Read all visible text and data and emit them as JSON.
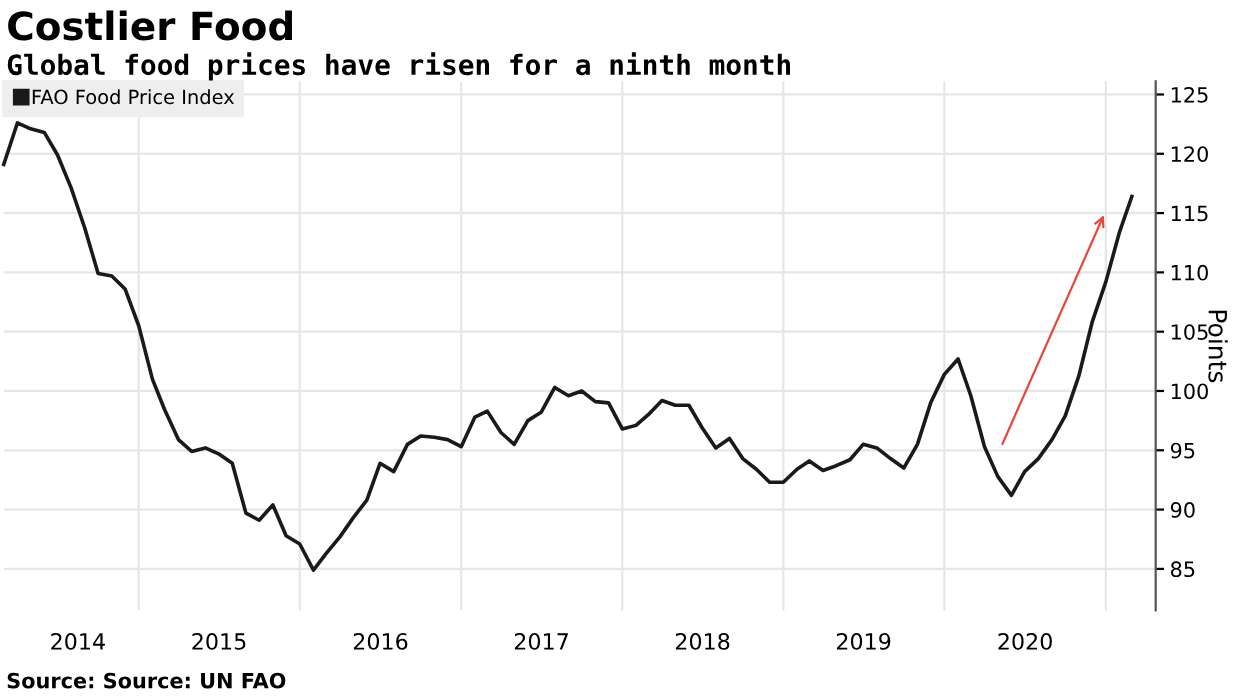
{
  "chart_data": {
    "type": "line",
    "title": "Costlier Food",
    "subtitle": "Global food prices have risen for a ninth month",
    "ylabel": "Points",
    "annotations": [
      "Source: Source: UN FAO"
    ],
    "x": [
      "2014-03",
      "2014-04",
      "2014-05",
      "2014-06",
      "2014-07",
      "2014-08",
      "2014-09",
      "2014-10",
      "2014-11",
      "2014-12",
      "2015-01",
      "2015-02",
      "2015-03",
      "2015-04",
      "2015-05",
      "2015-06",
      "2015-07",
      "2015-08",
      "2015-09",
      "2015-10",
      "2015-11",
      "2015-12",
      "2016-01",
      "2016-02",
      "2016-03",
      "2016-04",
      "2016-05",
      "2016-06",
      "2016-07",
      "2016-08",
      "2016-09",
      "2016-10",
      "2016-11",
      "2016-12",
      "2017-01",
      "2017-02",
      "2017-03",
      "2017-04",
      "2017-05",
      "2017-06",
      "2017-07",
      "2017-08",
      "2017-09",
      "2017-10",
      "2017-11",
      "2017-12",
      "2018-01",
      "2018-02",
      "2018-03",
      "2018-04",
      "2018-05",
      "2018-06",
      "2018-07",
      "2018-08",
      "2018-09",
      "2018-10",
      "2018-11",
      "2018-12",
      "2019-01",
      "2019-02",
      "2019-03",
      "2019-04",
      "2019-05",
      "2019-06",
      "2019-07",
      "2019-08",
      "2019-09",
      "2019-10",
      "2019-11",
      "2019-12",
      "2020-01",
      "2020-02",
      "2020-03",
      "2020-04",
      "2020-05",
      "2020-06",
      "2020-07",
      "2020-08",
      "2020-09",
      "2020-10",
      "2020-11",
      "2020-12",
      "2021-01",
      "2021-02",
      "2021-03"
    ],
    "series": [
      {
        "name": "FAO Food Price Index",
        "color": "#1a1a1a",
        "values": [
          119.1,
          122.6,
          122.1,
          121.8,
          119.9,
          117.1,
          113.7,
          109.9,
          109.7,
          108.6,
          105.5,
          101.0,
          98.4,
          95.9,
          94.9,
          95.2,
          94.7,
          93.9,
          89.7,
          89.1,
          90.4,
          87.8,
          87.1,
          84.9,
          86.3,
          87.7,
          89.3,
          90.8,
          93.9,
          93.2,
          95.5,
          96.2,
          96.1,
          95.9,
          95.3,
          97.8,
          98.3,
          96.5,
          95.5,
          97.5,
          98.2,
          100.3,
          99.6,
          100.0,
          99.1,
          99.0,
          96.8,
          97.1,
          98.0,
          99.2,
          98.8,
          98.8,
          96.9,
          95.2,
          96.0,
          94.3,
          93.4,
          92.3,
          92.3,
          93.4,
          94.1,
          93.3,
          93.7,
          94.2,
          95.5,
          95.2,
          94.3,
          93.5,
          95.5,
          99.0,
          101.4,
          102.7,
          99.6,
          95.3,
          92.8,
          91.2,
          93.2,
          94.3,
          95.9,
          97.9,
          101.3,
          105.8,
          109.2,
          113.4,
          116.4
        ]
      }
    ],
    "xlim": [
      "2014-03-01",
      "2021-04-24"
    ],
    "xticks": [
      {
        "value": "2014-08-16",
        "label": "2014"
      },
      {
        "value": "2015-07-02",
        "label": "2015"
      },
      {
        "value": "2016-07-02",
        "label": "2016"
      },
      {
        "value": "2017-07-02",
        "label": "2017"
      },
      {
        "value": "2018-07-02",
        "label": "2018"
      },
      {
        "value": "2019-07-02",
        "label": "2019"
      },
      {
        "value": "2020-07-02",
        "label": "2020"
      }
    ],
    "ylim": [
      81.5,
      126.1
    ],
    "yticks": [
      85,
      90,
      95,
      100,
      105,
      110,
      115,
      120,
      125
    ],
    "grid": true,
    "legend": "top left",
    "line_style": "solid",
    "marker": "none"
  }
}
